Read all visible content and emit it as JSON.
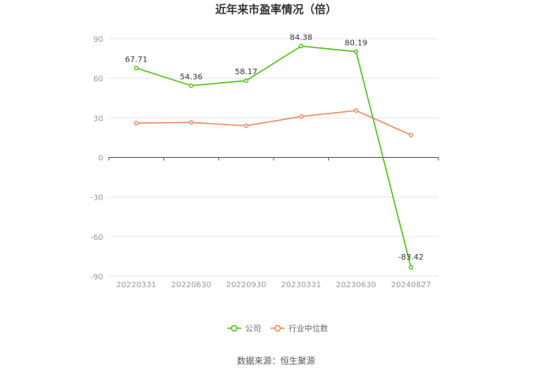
{
  "chart_data": {
    "type": "line",
    "title": "近年来市盈率情况（倍）",
    "categories": [
      "20220331",
      "20220630",
      "20220930",
      "20230331",
      "20230630",
      "20240827"
    ],
    "ylim": [
      -90,
      90
    ],
    "yticks": [
      90,
      60,
      30,
      0,
      -30,
      -60,
      -90
    ],
    "grid": true,
    "legend_position": "bottom-center",
    "series": [
      {
        "name": "公司",
        "color": "#52c41a",
        "values": [
          67.71,
          54.36,
          58.17,
          84.38,
          80.19,
          -83.42
        ],
        "labels": [
          "67.71",
          "54.36",
          "58.17",
          "84.38",
          "80.19",
          "-83.42"
        ]
      },
      {
        "name": "行业中位数",
        "color": "#f08a5d",
        "values": [
          26.0,
          26.5,
          24.0,
          31.0,
          35.5,
          17.0
        ]
      }
    ],
    "source": "数据来源：恒生聚源"
  }
}
